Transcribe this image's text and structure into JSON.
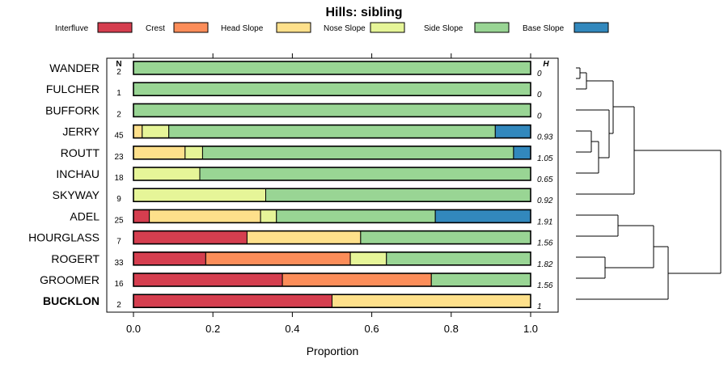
{
  "chart_data": {
    "type": "stacked-bar",
    "title": "Hills: sibling",
    "xlabel": "Proportion",
    "xlim": [
      0,
      1
    ],
    "xticks": [
      "0.0",
      "0.2",
      "0.4",
      "0.6",
      "0.8",
      "1.0"
    ],
    "n_header": "N",
    "h_header": "H",
    "legend": [
      {
        "name": "Interfluve",
        "color": "#d53e4f"
      },
      {
        "name": "Crest",
        "color": "#fc8d59"
      },
      {
        "name": "Head Slope",
        "color": "#fee08b"
      },
      {
        "name": "Nose Slope",
        "color": "#e6f598"
      },
      {
        "name": "Side Slope",
        "color": "#99d594"
      },
      {
        "name": "Base Slope",
        "color": "#3288bd"
      }
    ],
    "rows": [
      {
        "name": "WANDER",
        "n": "2",
        "h": "0",
        "bold": false,
        "values": [
          0,
          0,
          0,
          0,
          1.0,
          0
        ]
      },
      {
        "name": "FULCHER",
        "n": "1",
        "h": "0",
        "bold": false,
        "values": [
          0,
          0,
          0,
          0,
          1.0,
          0
        ]
      },
      {
        "name": "BUFFORK",
        "n": "2",
        "h": "0",
        "bold": false,
        "values": [
          0,
          0,
          0,
          0,
          1.0,
          0
        ]
      },
      {
        "name": "JERRY",
        "n": "45",
        "h": "0.93",
        "bold": false,
        "values": [
          0,
          0,
          0.022,
          0.067,
          0.822,
          0.089
        ]
      },
      {
        "name": "ROUTT",
        "n": "23",
        "h": "1.05",
        "bold": false,
        "values": [
          0,
          0,
          0.13,
          0.044,
          0.783,
          0.043
        ]
      },
      {
        "name": "INCHAU",
        "n": "18",
        "h": "0.65",
        "bold": false,
        "values": [
          0,
          0,
          0,
          0.167,
          0.833,
          0
        ]
      },
      {
        "name": "SKYWAY",
        "n": "9",
        "h": "0.92",
        "bold": false,
        "values": [
          0,
          0,
          0,
          0.333,
          0.667,
          0
        ]
      },
      {
        "name": "ADEL",
        "n": "25",
        "h": "1.91",
        "bold": false,
        "values": [
          0.04,
          0,
          0.28,
          0.04,
          0.4,
          0.24
        ]
      },
      {
        "name": "HOURGLASS",
        "n": "7",
        "h": "1.56",
        "bold": false,
        "values": [
          0.286,
          0,
          0.286,
          0,
          0.428,
          0
        ]
      },
      {
        "name": "ROGERT",
        "n": "33",
        "h": "1.82",
        "bold": false,
        "values": [
          0.182,
          0.364,
          0,
          0.091,
          0.363,
          0
        ]
      },
      {
        "name": "GROOMER",
        "n": "16",
        "h": "1.56",
        "bold": false,
        "values": [
          0.375,
          0.375,
          0,
          0,
          0.25,
          0
        ]
      },
      {
        "name": "BUCKLON",
        "n": "2",
        "h": "1",
        "bold": true,
        "values": [
          0.5,
          0,
          0.5,
          0,
          0,
          0
        ]
      }
    ]
  }
}
